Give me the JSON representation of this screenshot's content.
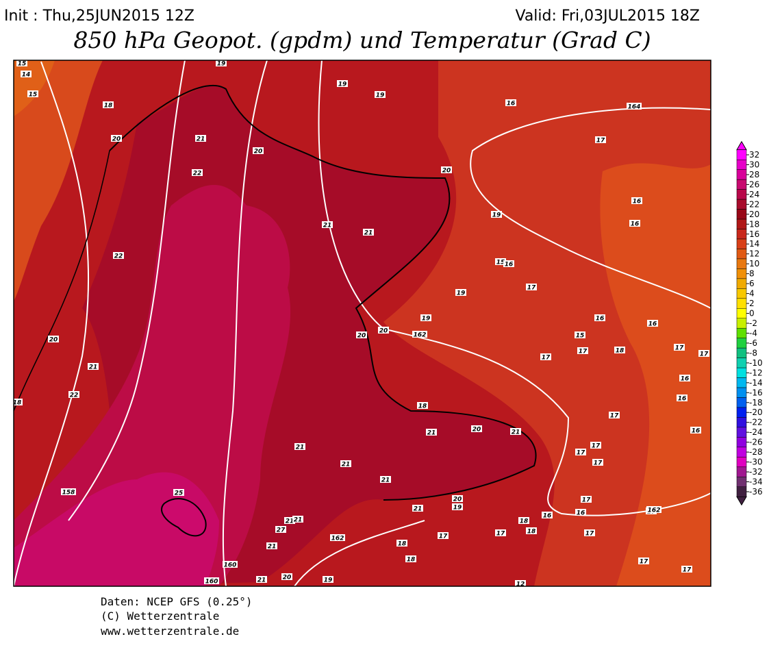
{
  "header": {
    "init": "Init : Thu,25JUN2015 12Z",
    "valid": "Valid: Fri,03JUL2015 18Z",
    "title": "850 hPa Geopot. (gpdm) und Temperatur (Grad C)"
  },
  "footer": {
    "lines": [
      "Daten: NCEP GFS (0.25°)",
      "(C) Wetterzentrale",
      "www.wetterzentrale.de"
    ]
  },
  "legend": {
    "ticks": [
      32,
      30,
      28,
      26,
      24,
      22,
      20,
      18,
      16,
      14,
      12,
      10,
      8,
      6,
      4,
      2,
      0,
      -2,
      -4,
      -6,
      -8,
      -10,
      -12,
      -14,
      -16,
      -18,
      -20,
      -22,
      -24,
      -26,
      -28,
      -30,
      -32,
      -34,
      -36
    ],
    "colors": [
      "#ff00ff",
      "#e600c8",
      "#d8009a",
      "#c80a70",
      "#b8084a",
      "#a80c2c",
      "#980818",
      "#b01818",
      "#c8281c",
      "#d84018",
      "#e05a14",
      "#e87810",
      "#f09008",
      "#f0aa00",
      "#f8c800",
      "#ffe000",
      "#ffff00",
      "#c8f000",
      "#60e000",
      "#20d040",
      "#10c080",
      "#10d0b0",
      "#00e0e0",
      "#00b8f0",
      "#0090f0",
      "#0060f0",
      "#0020f0",
      "#3010e0",
      "#6010e0",
      "#9000e0",
      "#c000e0",
      "#e000c0",
      "#a01890",
      "#703070",
      "#402040"
    ]
  },
  "map": {
    "contour_labels": [
      14,
      15,
      18,
      20,
      21,
      22,
      20,
      19,
      19,
      16,
      164,
      17,
      20,
      21,
      21,
      19,
      16,
      16,
      15,
      16,
      17,
      19,
      22,
      19,
      20,
      20,
      162,
      16,
      16,
      15,
      17,
      18,
      17,
      17,
      17,
      20,
      21,
      22,
      18,
      16,
      16,
      18,
      17,
      16,
      21,
      20,
      21,
      21,
      21,
      17,
      17,
      17,
      21,
      25,
      158,
      20,
      19,
      17,
      16,
      21,
      21,
      21,
      27,
      21,
      162,
      18,
      16,
      17,
      162,
      17,
      17,
      18,
      17,
      18,
      18,
      160,
      160,
      21,
      20,
      19,
      17,
      17,
      12,
      19,
      15
    ]
  }
}
